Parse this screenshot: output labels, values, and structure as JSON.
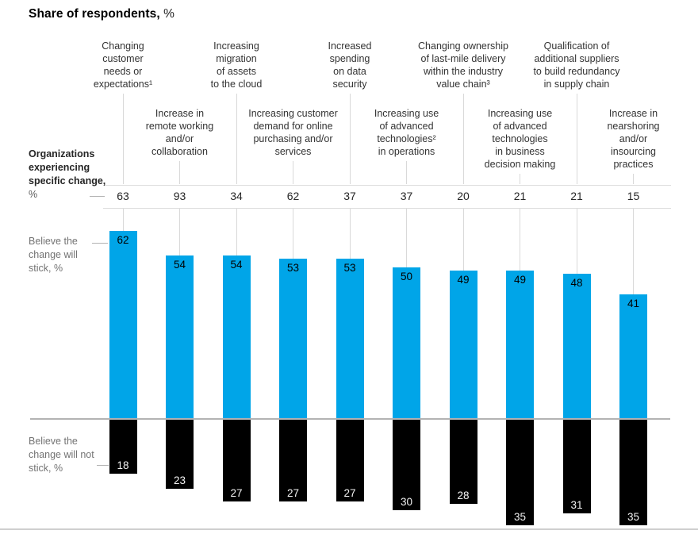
{
  "title": {
    "text": "Share of respondents,",
    "unit": "%"
  },
  "side_labels": {
    "experiencing_bold": "Organizations experiencing specific change,",
    "experiencing_unit": "%",
    "stick": "Believe the change will stick, %",
    "not_stick": "Believe the change will not stick, %"
  },
  "colors": {
    "stick_bar": "#00a5e8",
    "not_stick_bar": "#000000",
    "grid": "#d9d9d9",
    "zero_axis": "#b3b3b3",
    "category_text": "#333333",
    "muted_text": "#737373"
  },
  "chart_data": {
    "type": "bar",
    "orientation": "diverging-vertical",
    "title": "Share of respondents, %",
    "grid": true,
    "legend_position": "left",
    "categories": [
      {
        "row": 1,
        "lines": [
          "Changing",
          "customer",
          "needs or",
          "expectations¹"
        ]
      },
      {
        "row": 2,
        "lines": [
          "Increase in",
          "remote working",
          "and/or",
          "collaboration"
        ]
      },
      {
        "row": 1,
        "lines": [
          "Increasing",
          "migration",
          "of assets",
          "to the cloud"
        ]
      },
      {
        "row": 2,
        "lines": [
          "Increasing customer",
          "demand for online",
          "purchasing and/or",
          "services"
        ]
      },
      {
        "row": 1,
        "lines": [
          "Increased",
          "spending",
          "on data",
          "security"
        ]
      },
      {
        "row": 2,
        "lines": [
          "Increasing use",
          "of advanced",
          "technologies²",
          "in operations"
        ]
      },
      {
        "row": 1,
        "lines": [
          "Changing ownership",
          "of last-mile delivery",
          "within the industry",
          "value chain³"
        ]
      },
      {
        "row": 2,
        "lines": [
          "Increasing use",
          "of advanced",
          "technologies",
          "in business",
          "decision making"
        ]
      },
      {
        "row": 1,
        "lines": [
          "Qualification of",
          "additional suppliers",
          "to build redundancy",
          "in supply chain"
        ]
      },
      {
        "row": 2,
        "lines": [
          "Increase in",
          "nearshoring",
          "and/or",
          "insourcing",
          "practices"
        ]
      }
    ],
    "series": [
      {
        "name": "Organizations experiencing specific change, %",
        "values": [
          63,
          93,
          34,
          62,
          37,
          37,
          20,
          21,
          21,
          15
        ]
      },
      {
        "name": "Believe the change will stick, %",
        "values": [
          62,
          54,
          54,
          53,
          53,
          50,
          49,
          49,
          48,
          41
        ]
      },
      {
        "name": "Believe the change will not stick, %",
        "values": [
          18,
          23,
          27,
          27,
          27,
          30,
          28,
          35,
          31,
          35
        ]
      }
    ],
    "value_range_stick": [
      0,
      62
    ],
    "value_range_not_stick": [
      0,
      35
    ]
  }
}
